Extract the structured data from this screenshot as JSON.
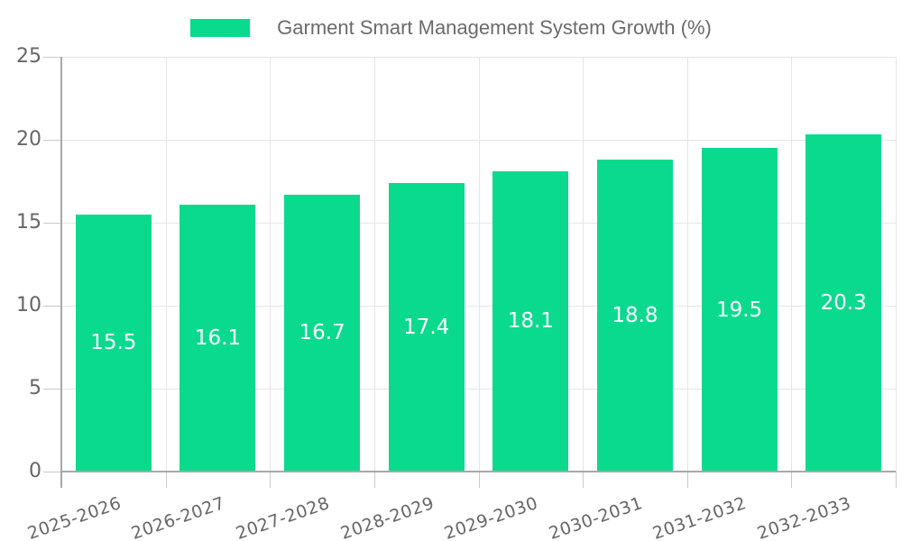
{
  "chart_data": {
    "type": "bar",
    "title": "Garment Smart Management System Growth (%)",
    "categories": [
      "2025-2026",
      "2026-2027",
      "2027-2028",
      "2028-2029",
      "2029-2030",
      "2030-2031",
      "2031-2032",
      "2032-2033"
    ],
    "values": [
      15.5,
      16.1,
      16.7,
      17.4,
      18.1,
      18.8,
      19.5,
      20.3
    ],
    "value_labels": [
      "15.5",
      "16.1",
      "16.7",
      "17.4",
      "18.1",
      "18.8",
      "19.5",
      "20.3"
    ],
    "xlabel": "",
    "ylabel": "",
    "ylim": [
      0,
      25
    ],
    "yticks": [
      0,
      5,
      10,
      15,
      20,
      25
    ],
    "grid": "on",
    "legend_position": "top",
    "colors": {
      "bar": "#0ada8d",
      "value_label": "#ffffff",
      "axis_text": "#666666",
      "title_text": "#6b6b6b",
      "gridline": "#e6e6e6",
      "tick": "#c9c9c9",
      "axis_line": "#a8a8a8"
    }
  }
}
